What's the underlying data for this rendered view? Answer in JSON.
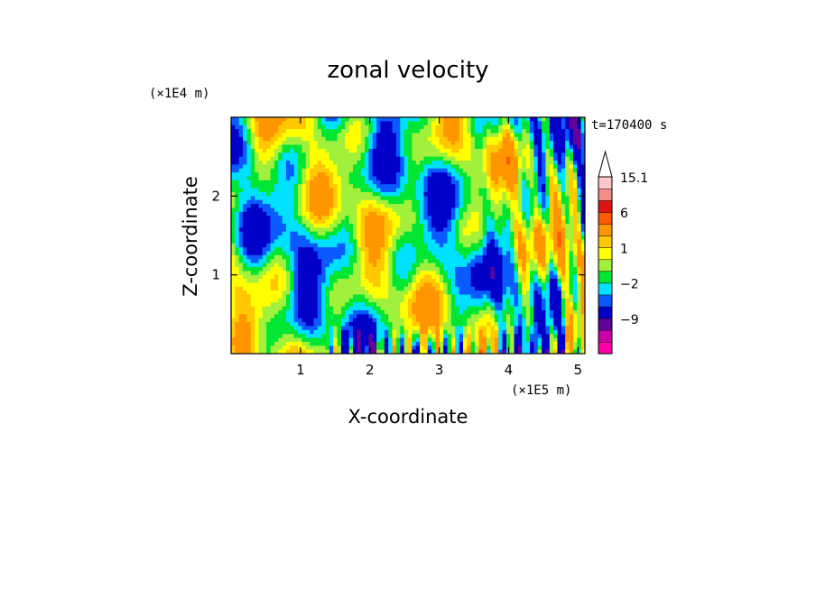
{
  "chart_data": {
    "type": "heatmap",
    "title": "zonal velocity",
    "xlabel": "X-coordinate",
    "ylabel": "Z-coordinate",
    "x_unit": "(×1E5 m)",
    "y_unit": "(×1E4 m)",
    "time_label": "t=170400 s",
    "xlim": [
      0,
      5.1
    ],
    "ylim": [
      0,
      3.0
    ],
    "x_ticks": [
      "1",
      "2",
      "3",
      "4",
      "5"
    ],
    "y_ticks": [
      "1",
      "2"
    ],
    "x_tick_values": [
      1,
      2,
      3,
      4,
      5
    ],
    "y_tick_values": [
      1,
      2
    ],
    "colorbar": {
      "levels": [
        -15,
        -12,
        -9,
        -6,
        -3,
        -2,
        -1,
        0,
        1,
        2,
        3,
        6,
        9,
        12,
        15.1
      ],
      "labels": [
        "15.1",
        "6",
        "1",
        "−2",
        "−9"
      ],
      "label_values": [
        15.1,
        6,
        1,
        -2,
        -9
      ],
      "colors": [
        "#ff00a8",
        "#c800a8",
        "#64009b",
        "#0000c8",
        "#0a5aff",
        "#00e0ff",
        "#00e632",
        "#a0f03c",
        "#ffff00",
        "#ffc800",
        "#ff9600",
        "#ff5a00",
        "#e11414",
        "#f58c8c",
        "#ffc8c8"
      ]
    },
    "grid": false,
    "legend": "right"
  }
}
